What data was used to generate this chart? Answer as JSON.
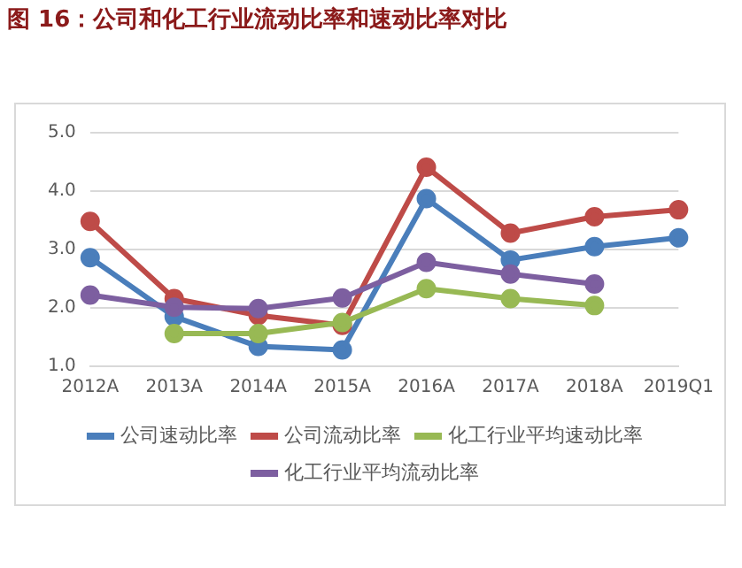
{
  "chart_data": {
    "type": "line",
    "title": "图 16：公司和化工行业流动比率和速动比率对比",
    "categories": [
      "2012A",
      "2013A",
      "2014A",
      "2015A",
      "2016A",
      "2017A",
      "2018A",
      "2019Q1"
    ],
    "series": [
      {
        "name": "公司速动比率",
        "color": "#4a7ebb",
        "values": [
          2.86,
          1.85,
          1.34,
          1.28,
          3.87,
          2.82,
          3.05,
          3.2
        ]
      },
      {
        "name": "公司流动比率",
        "color": "#be4b48",
        "values": [
          3.48,
          2.16,
          1.87,
          1.7,
          4.41,
          3.28,
          3.56,
          3.68
        ]
      },
      {
        "name": "化工行业平均速动比率",
        "color": "#98b954",
        "values": [
          null,
          1.56,
          1.56,
          1.75,
          2.33,
          2.16,
          2.04,
          null
        ]
      },
      {
        "name": "化工行业平均流动比率",
        "color": "#7d5fa0",
        "values": [
          2.22,
          2.01,
          1.99,
          2.17,
          2.78,
          2.58,
          2.41,
          null
        ]
      }
    ],
    "ylim": [
      1,
      5
    ],
    "yticks": [
      {
        "value": 1,
        "label": "1.0"
      },
      {
        "value": 2,
        "label": "2.0"
      },
      {
        "value": 3,
        "label": "3.0"
      },
      {
        "value": 4,
        "label": "4.0"
      },
      {
        "value": 5,
        "label": "5.0"
      }
    ],
    "grid": "y",
    "legend": "bottom",
    "marker": "circle",
    "line_style": "solid"
  }
}
